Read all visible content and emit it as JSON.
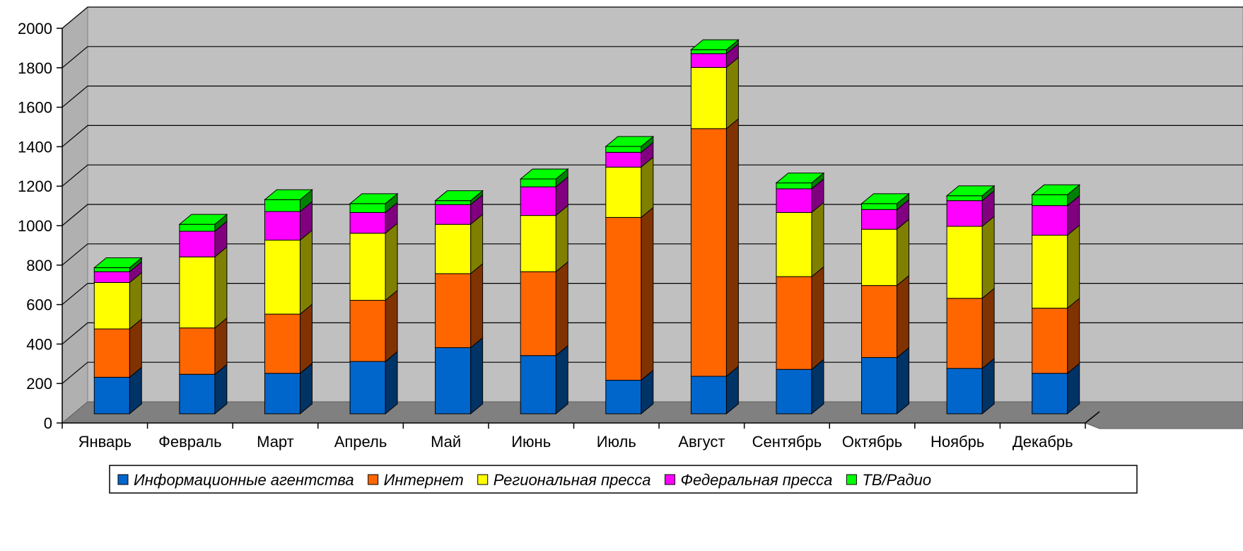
{
  "chart_data": {
    "type": "bar",
    "stacked": true,
    "three_d": true,
    "title": "",
    "xlabel": "",
    "ylabel": "",
    "ylim": [
      0,
      2000
    ],
    "yticks": [
      0,
      200,
      400,
      600,
      800,
      1000,
      1200,
      1400,
      1600,
      1800,
      2000
    ],
    "grid": true,
    "legend_position": "bottom",
    "categories": [
      "Январь",
      "Февраль",
      "Март",
      "Апрель",
      "Май",
      "Июнь",
      "Июль",
      "Август",
      "Сентябрь",
      "Октябрь",
      "Ноябрь",
      "Декабрь"
    ],
    "series": [
      {
        "name": "Информационные агентства",
        "color": "#0066cc",
        "values": [
          185,
          200,
          205,
          265,
          335,
          295,
          170,
          190,
          225,
          285,
          230,
          205
        ]
      },
      {
        "name": "Интернет",
        "color": "#ff6600",
        "values": [
          245,
          235,
          300,
          310,
          375,
          425,
          825,
          1255,
          470,
          365,
          355,
          330
        ]
      },
      {
        "name": "Региональная пресса",
        "color": "#ffff00",
        "values": [
          235,
          360,
          375,
          340,
          250,
          285,
          255,
          310,
          325,
          285,
          365,
          370
        ]
      },
      {
        "name": "Федеральная пресса",
        "color": "#ff00ff",
        "values": [
          55,
          130,
          145,
          105,
          100,
          145,
          75,
          70,
          120,
          100,
          130,
          150
        ]
      },
      {
        "name": "ТВ/Радио",
        "color": "#00ff00",
        "values": [
          20,
          35,
          60,
          45,
          20,
          40,
          30,
          20,
          30,
          30,
          25,
          55
        ]
      }
    ]
  }
}
